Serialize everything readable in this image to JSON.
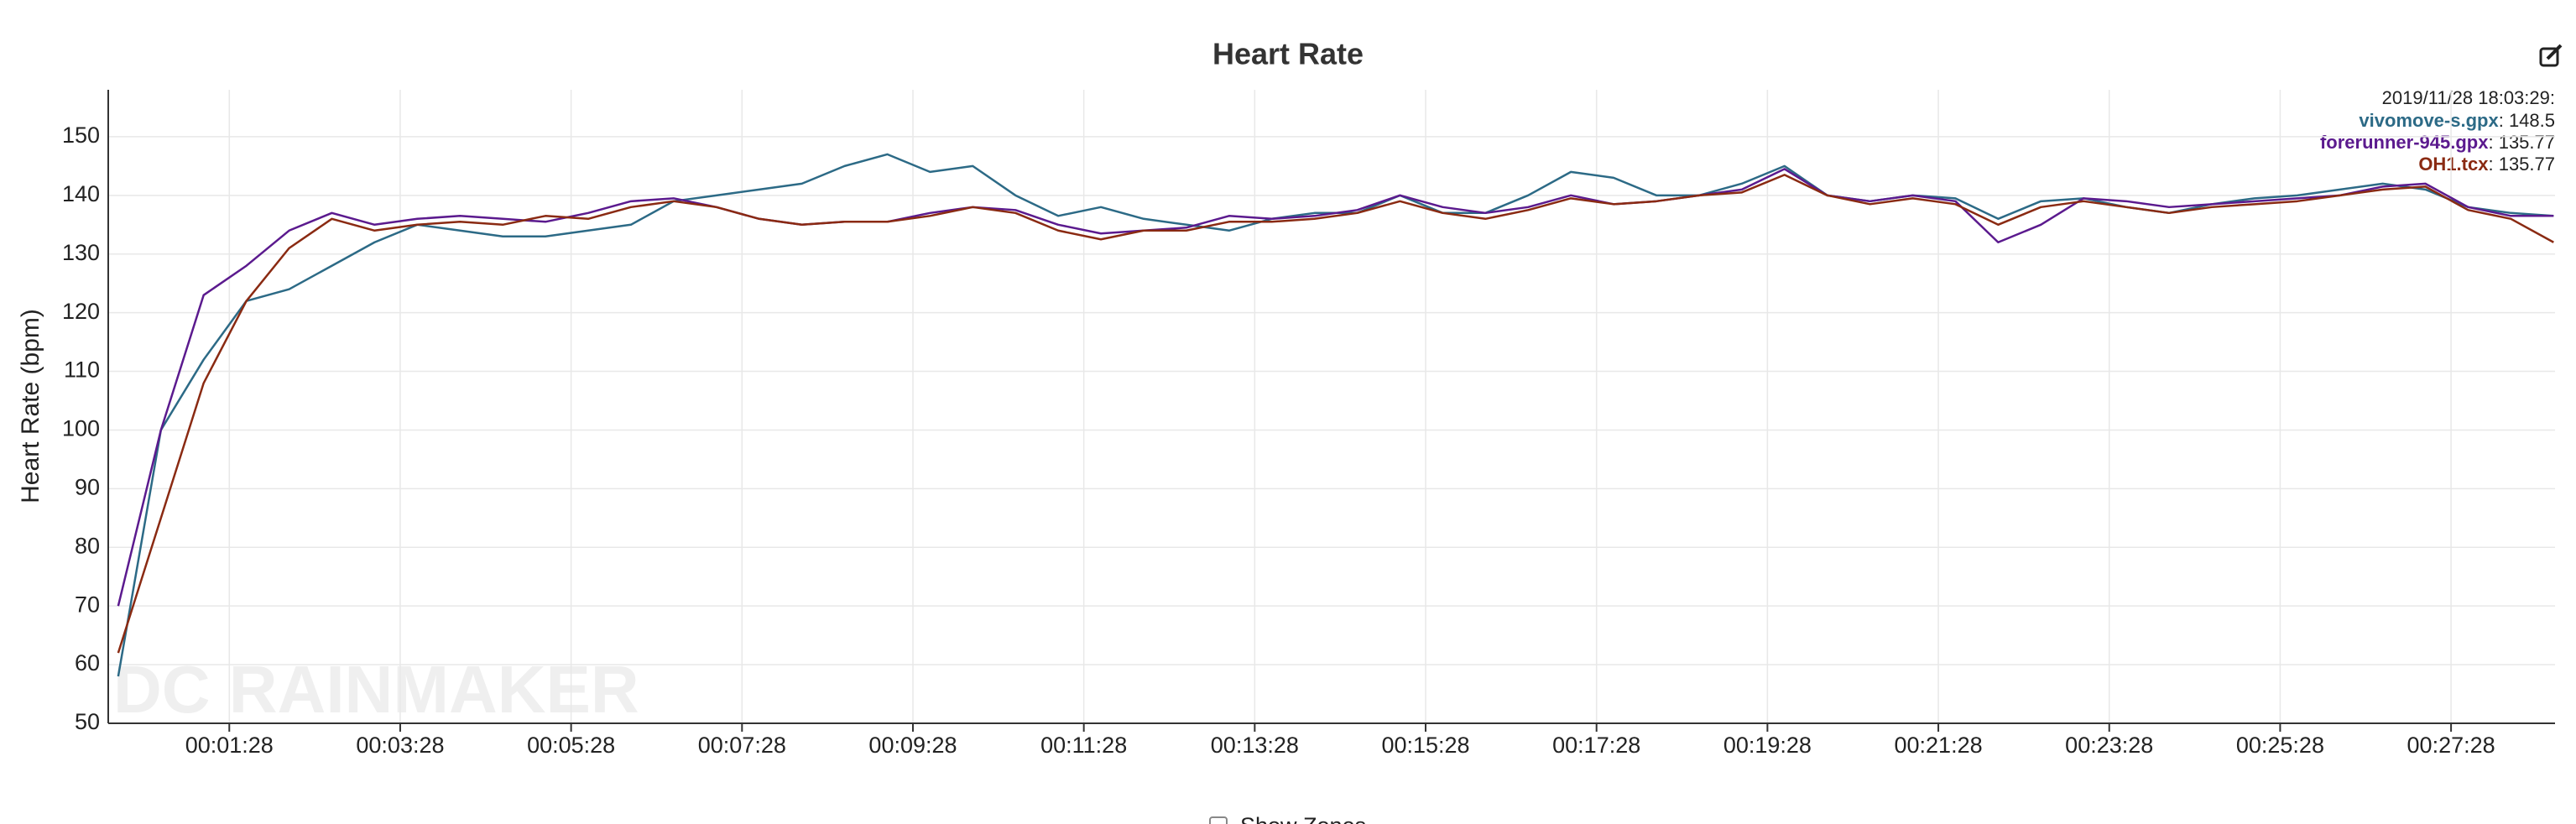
{
  "chart_data": {
    "type": "line",
    "title": "Heart Rate",
    "ylabel": "Heart Rate (bpm)",
    "watermark": "DC RAINMAKER",
    "zones_toggle": "Show Zones",
    "hover_time": "2019/11/28 18:03:29:",
    "hover_values": [
      148.5,
      135.77,
      135.77
    ],
    "x": [
      10,
      40,
      70,
      100,
      130,
      160,
      190,
      220,
      250,
      280,
      310,
      340,
      370,
      400,
      430,
      460,
      490,
      520,
      550,
      580,
      610,
      640,
      670,
      700,
      730,
      760,
      790,
      820,
      850,
      880,
      910,
      940,
      970,
      1000,
      1030,
      1060,
      1090,
      1120,
      1150,
      1180,
      1210,
      1240,
      1270,
      1300,
      1330,
      1360,
      1390,
      1420,
      1450,
      1480,
      1510,
      1540,
      1570,
      1600,
      1630,
      1660,
      1690,
      1720
    ],
    "series": [
      {
        "name": "vivomove-s.gpx",
        "color": "#2c6a86",
        "values": [
          58,
          100,
          112,
          122,
          124,
          128,
          132,
          135,
          134,
          133,
          133,
          134,
          135,
          139,
          140,
          141,
          142,
          145,
          147,
          144,
          145,
          140,
          136.5,
          138,
          136,
          135,
          134,
          136,
          137,
          137,
          140,
          137,
          137,
          140,
          144,
          143,
          140,
          140,
          142,
          145,
          140,
          139,
          140,
          139.5,
          136,
          139,
          139.5,
          138,
          137,
          138.5,
          139.5,
          140,
          141,
          142,
          141,
          138,
          137,
          136.5
        ]
      },
      {
        "name": "forerunner-945.gpx",
        "color": "#5b1a8e",
        "values": [
          70,
          100,
          123,
          128,
          134,
          137,
          135,
          136,
          136.5,
          136,
          135.5,
          137,
          139,
          139.5,
          138,
          136,
          135,
          135.5,
          135.5,
          137,
          138,
          137.5,
          135,
          133.5,
          134,
          134.5,
          136.5,
          136,
          136.5,
          137.5,
          140,
          138,
          137,
          138,
          140,
          138.5,
          139,
          140,
          141,
          144.5,
          140,
          139,
          140,
          139,
          132,
          135,
          139.5,
          139,
          138,
          138.5,
          139,
          139.5,
          140,
          141.5,
          142,
          138,
          136.5,
          136.5
        ]
      },
      {
        "name": "OH1.tcx",
        "color": "#8a2a12",
        "values": [
          62,
          85,
          108,
          122,
          131,
          136,
          134,
          135,
          135.5,
          135,
          136.5,
          136,
          138,
          139,
          138,
          136,
          135,
          135.5,
          135.5,
          136.5,
          138,
          137,
          134,
          132.5,
          134,
          134,
          135.5,
          135.5,
          136,
          137,
          139,
          137,
          136,
          137.5,
          139.5,
          138.5,
          139,
          140,
          140.5,
          143.5,
          140,
          138.5,
          139.5,
          138.5,
          135,
          138,
          139,
          138,
          137,
          138,
          138.5,
          139,
          140,
          141,
          141.5,
          137.5,
          136,
          132
        ]
      }
    ],
    "xlim": [
      3,
      1721
    ],
    "xticks": [
      {
        "value": 88,
        "label": "00:01:28"
      },
      {
        "value": 208,
        "label": "00:03:28"
      },
      {
        "value": 328,
        "label": "00:05:28"
      },
      {
        "value": 448,
        "label": "00:07:28"
      },
      {
        "value": 568,
        "label": "00:09:28"
      },
      {
        "value": 688,
        "label": "00:11:28"
      },
      {
        "value": 808,
        "label": "00:13:28"
      },
      {
        "value": 928,
        "label": "00:15:28"
      },
      {
        "value": 1048,
        "label": "00:17:28"
      },
      {
        "value": 1168,
        "label": "00:19:28"
      },
      {
        "value": 1288,
        "label": "00:21:28"
      },
      {
        "value": 1408,
        "label": "00:23:28"
      },
      {
        "value": 1528,
        "label": "00:25:28"
      },
      {
        "value": 1648,
        "label": "00:27:28"
      }
    ],
    "ylim": [
      50,
      158
    ],
    "yticks": [
      50,
      60,
      70,
      80,
      90,
      100,
      110,
      120,
      130,
      140,
      150
    ],
    "grid": true
  }
}
